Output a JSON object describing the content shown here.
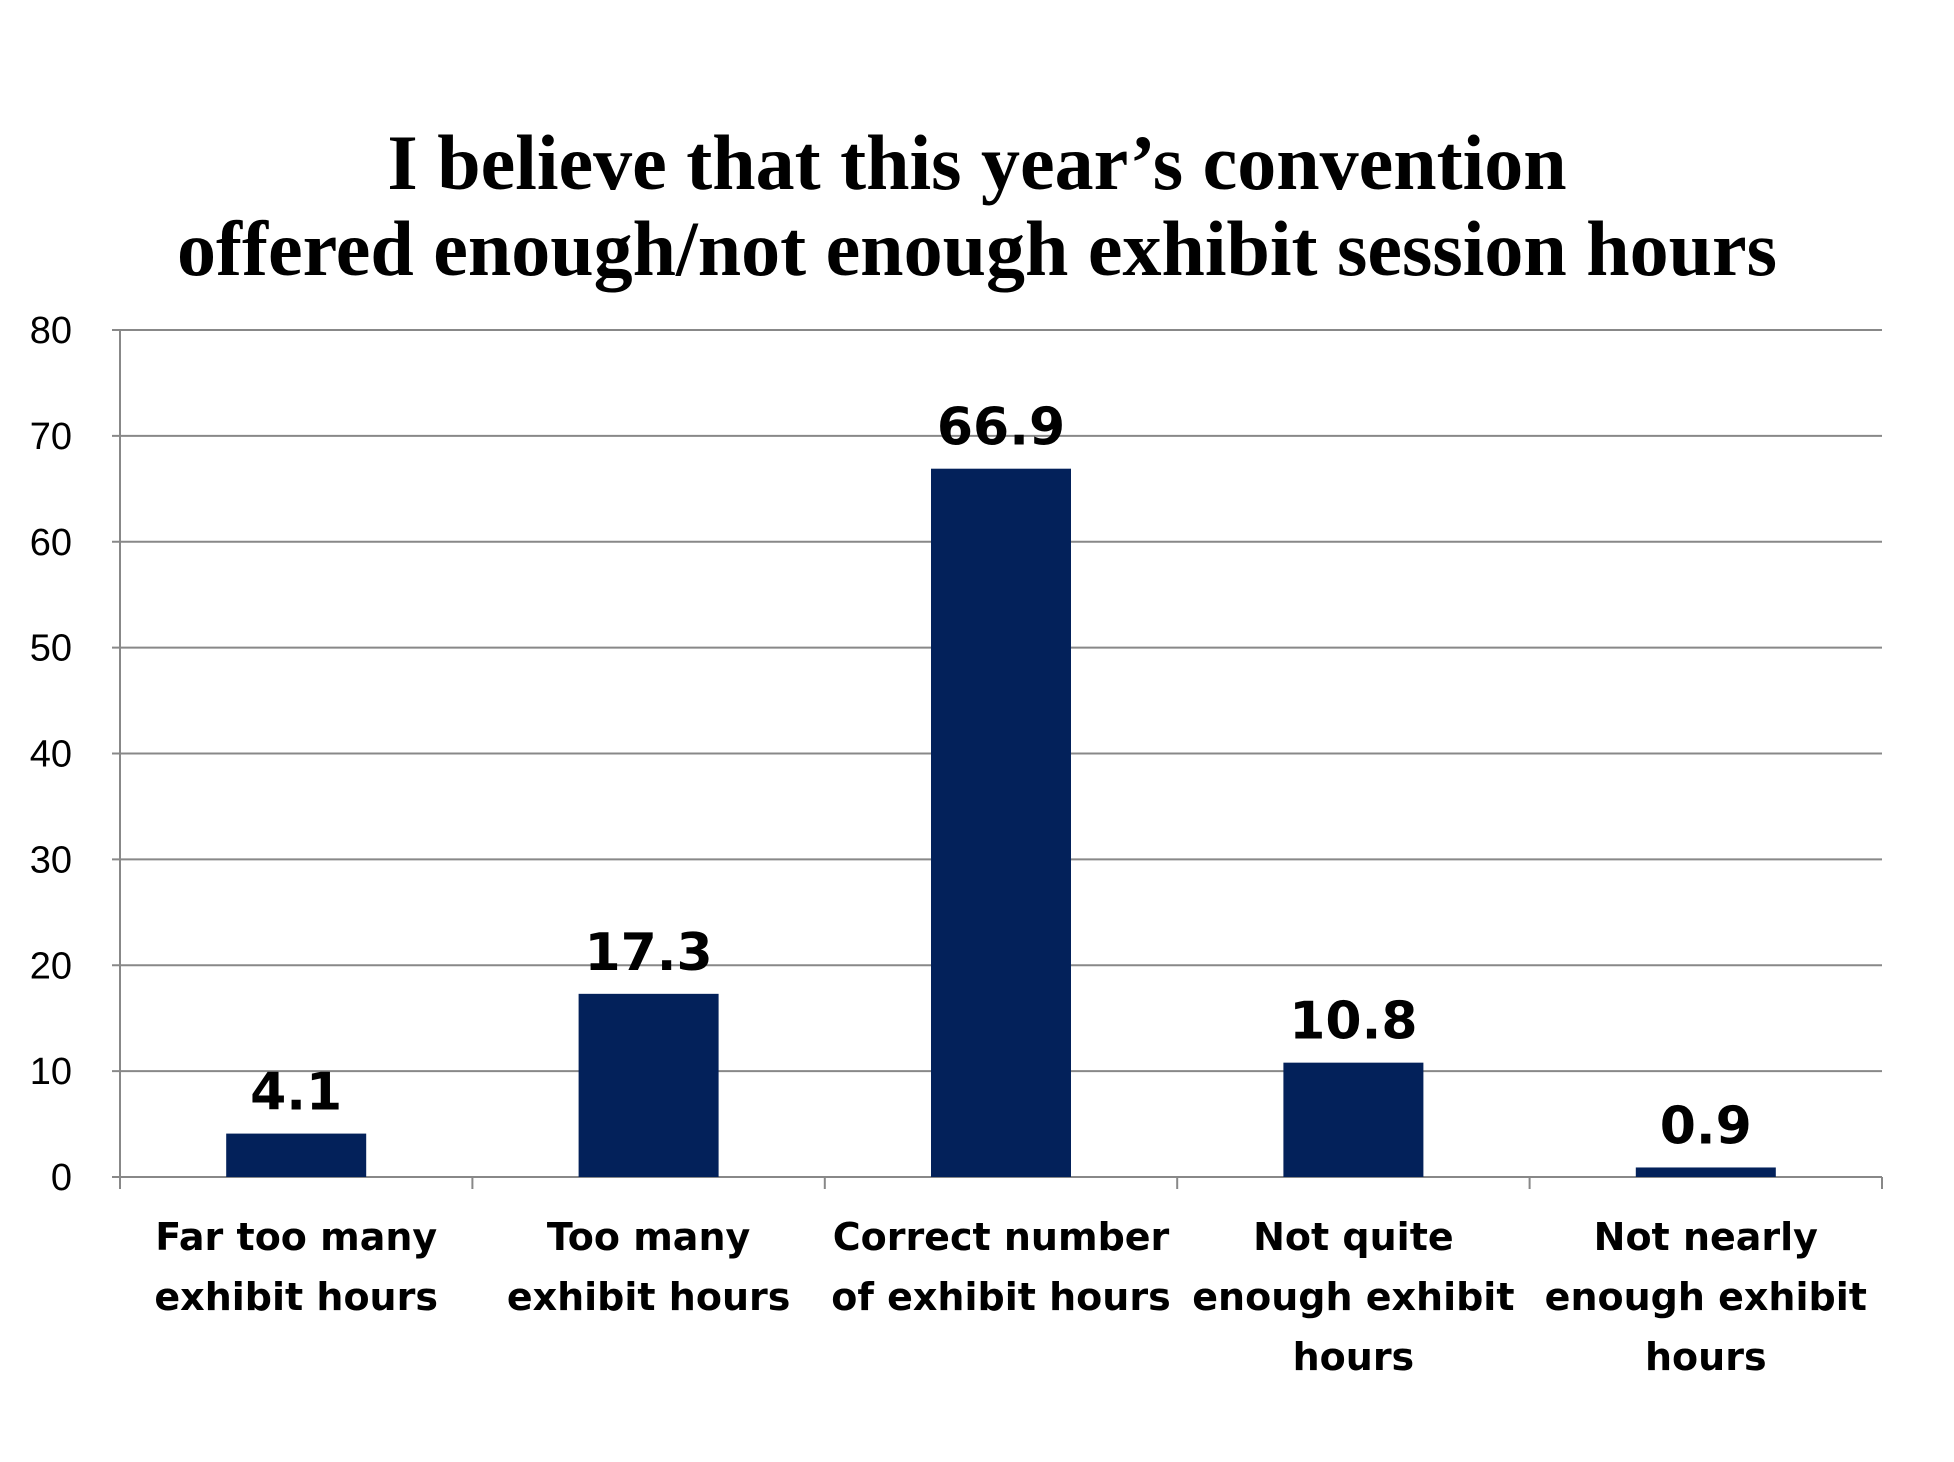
{
  "chart_data": {
    "type": "bar",
    "title_lines": [
      "I believe that this year’s convention",
      "offered enough/not enough exhibit session hours"
    ],
    "categories": [
      [
        "Far too many",
        "exhibit hours"
      ],
      [
        "Too many",
        "exhibit hours"
      ],
      [
        "Correct number",
        "of exhibit hours"
      ],
      [
        "Not quite",
        "enough exhibit",
        "hours"
      ],
      [
        "Not nearly",
        "enough exhibit",
        "hours"
      ]
    ],
    "values": [
      4.1,
      17.3,
      66.9,
      10.8,
      0.9
    ],
    "value_labels": [
      "4.1",
      "17.3",
      "66.9",
      "10.8",
      "0.9"
    ],
    "ylim": [
      0,
      80
    ],
    "yticks": [
      "0",
      "10",
      "20",
      "30",
      "40",
      "50",
      "60",
      "70",
      "80"
    ],
    "grid": true,
    "bar_color": "#03215a",
    "grid_color": "#888888"
  }
}
